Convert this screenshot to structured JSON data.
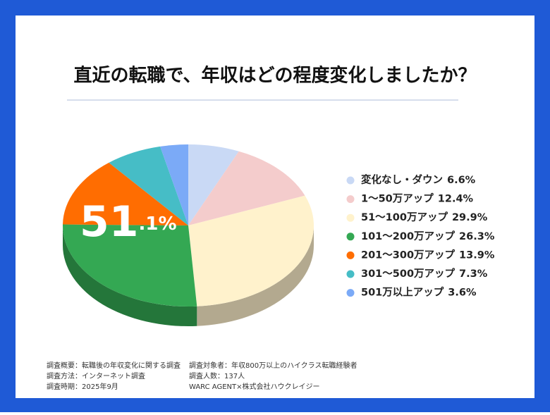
{
  "chart_data": {
    "type": "pie",
    "title": "直近の転職で、年収はどの程度変化しましたか？",
    "categories": [
      "変化なし・ダウン",
      "1〜50万アップ",
      "51〜100万アップ",
      "101〜200万アップ",
      "201〜300万アップ",
      "301〜500万アップ",
      "501万以上アップ"
    ],
    "values": [
      6.6,
      12.4,
      29.9,
      26.3,
      13.9,
      7.3,
      3.6
    ],
    "value_labels": [
      "6.6%",
      "12.4%",
      "29.9%",
      "26.3%",
      "13.9%",
      "7.3%",
      "3.6%"
    ],
    "colors": [
      "#c9d9f5",
      "#f4cccc",
      "#fff2cc",
      "#34a853",
      "#ff6d01",
      "#46bdc6",
      "#7baaf7"
    ],
    "annotation_main": "51",
    "annotation_sub": ".1%",
    "legend": "right",
    "notes": [
      "調査概要：転職後の年収変化に関する調査",
      "調査対象者：年収800万以上のハイクラス転職経験者",
      "調査方法：インターネット調査",
      "調査人数：137人",
      "調査時期：2025年9月",
      "WARC AGENT×株式会社ハウクレイジー"
    ]
  }
}
